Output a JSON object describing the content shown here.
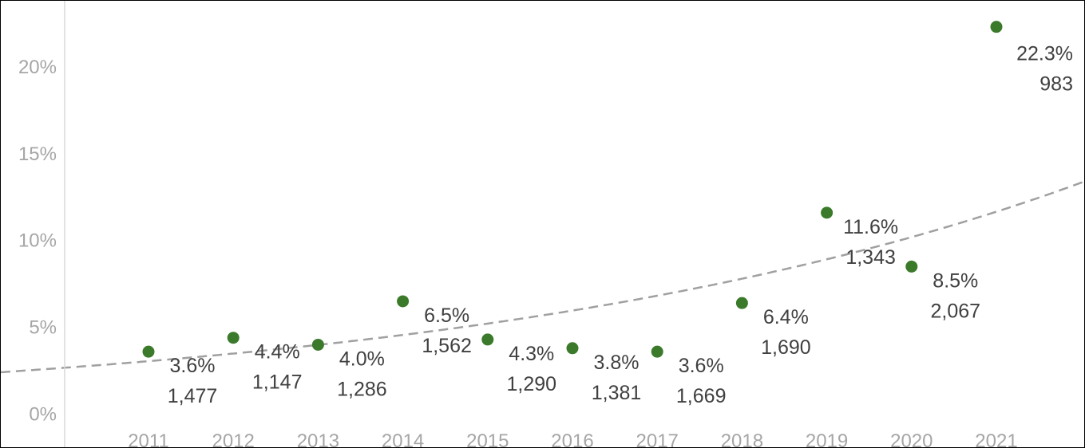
{
  "chart_data": {
    "type": "scatter",
    "title": "",
    "xlabel": "",
    "ylabel": "",
    "x": [
      "2011",
      "2012",
      "2013",
      "2014",
      "2015",
      "2016",
      "2017",
      "2018",
      "2019",
      "2020",
      "2021"
    ],
    "series": [
      {
        "values": [
          3.6,
          4.4,
          4.0,
          6.5,
          4.3,
          3.8,
          3.6,
          6.4,
          11.6,
          8.5,
          22.3
        ],
        "labels": [
          "3.6%",
          "4.4%",
          "4.0%",
          "6.5%",
          "4.3%",
          "3.8%",
          "3.6%",
          "6.4%",
          "11.6%",
          "8.5%",
          "22.3%"
        ],
        "counts": [
          "1,477",
          "1,147",
          "1,286",
          "1,562",
          "1,290",
          "1,381",
          "1,669",
          "1,690",
          "1,343",
          "2,067",
          "983"
        ],
        "color": "#3a7a2a"
      }
    ],
    "trendline": {
      "type": "exponential",
      "style": "dashed",
      "color": "#a0a0a0"
    },
    "yticks": [
      "0%",
      "5%",
      "10%",
      "15%",
      "20%"
    ],
    "ylim": [
      -1.9,
      23.8
    ],
    "grid": false,
    "legend": "none"
  }
}
